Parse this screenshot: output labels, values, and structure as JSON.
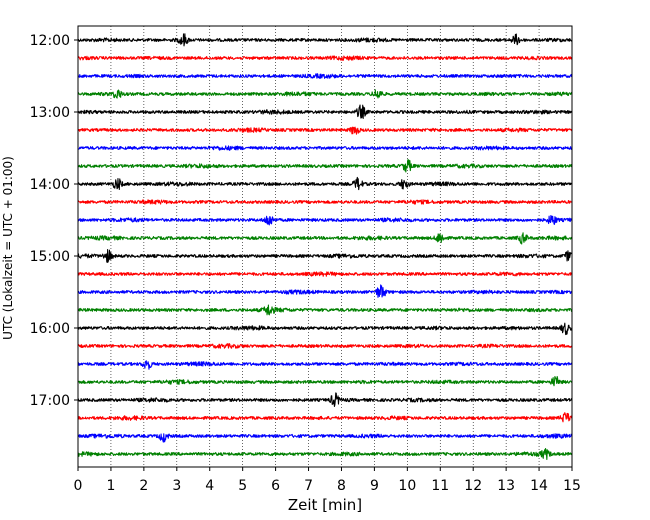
{
  "chart_data": {
    "type": "line",
    "title": "",
    "xlabel": "Zeit  [min]",
    "ylabel": "UTC (Lokalzeit = UTC + 01:00)",
    "xlim": [
      0,
      15
    ],
    "x_ticks": [
      "0",
      "1",
      "2",
      "3",
      "4",
      "5",
      "6",
      "7",
      "8",
      "9",
      "10",
      "11",
      "12",
      "13",
      "14",
      "15"
    ],
    "y_ticks": [
      "12:00",
      "13:00",
      "14:00",
      "15:00",
      "16:00",
      "17:00"
    ],
    "grid": "vertical dotted lines at each minute",
    "trace_interval_minutes": 15,
    "trace_count": 24,
    "trace_colors": [
      "#000000",
      "#ff0000",
      "#0000ff",
      "#008000"
    ],
    "trace_start_times": [
      "12:00",
      "12:15",
      "12:30",
      "12:45",
      "13:00",
      "13:15",
      "13:30",
      "13:45",
      "14:00",
      "14:15",
      "14:30",
      "14:45",
      "15:00",
      "15:15",
      "15:30",
      "15:45",
      "16:00",
      "16:15",
      "16:30",
      "16:45",
      "17:00",
      "17:15",
      "17:30",
      "17:45"
    ],
    "events": [
      {
        "trace": 0,
        "x_min": 3.2,
        "strength": 1.6
      },
      {
        "trace": 0,
        "x_min": 13.3,
        "strength": 1.3
      },
      {
        "trace": 3,
        "x_min": 1.2,
        "strength": 1.2
      },
      {
        "trace": 3,
        "x_min": 9.1,
        "strength": 1.4
      },
      {
        "trace": 4,
        "x_min": 8.6,
        "strength": 1.9
      },
      {
        "trace": 5,
        "x_min": 8.4,
        "strength": 1.2
      },
      {
        "trace": 7,
        "x_min": 10.0,
        "strength": 1.7
      },
      {
        "trace": 8,
        "x_min": 1.2,
        "strength": 1.5
      },
      {
        "trace": 8,
        "x_min": 8.5,
        "strength": 1.6
      },
      {
        "trace": 8,
        "x_min": 9.9,
        "strength": 1.3
      },
      {
        "trace": 10,
        "x_min": 5.8,
        "strength": 1.6
      },
      {
        "trace": 10,
        "x_min": 14.4,
        "strength": 1.4
      },
      {
        "trace": 11,
        "x_min": 11.0,
        "strength": 1.5
      },
      {
        "trace": 11,
        "x_min": 13.5,
        "strength": 1.4
      },
      {
        "trace": 12,
        "x_min": 0.9,
        "strength": 1.6
      },
      {
        "trace": 12,
        "x_min": 14.9,
        "strength": 1.3
      },
      {
        "trace": 14,
        "x_min": 9.2,
        "strength": 2.2
      },
      {
        "trace": 15,
        "x_min": 5.8,
        "strength": 1.3
      },
      {
        "trace": 16,
        "x_min": 14.8,
        "strength": 1.6
      },
      {
        "trace": 18,
        "x_min": 2.1,
        "strength": 1.4
      },
      {
        "trace": 19,
        "x_min": 14.5,
        "strength": 1.4
      },
      {
        "trace": 20,
        "x_min": 7.8,
        "strength": 1.8
      },
      {
        "trace": 21,
        "x_min": 14.8,
        "strength": 1.3
      },
      {
        "trace": 22,
        "x_min": 2.6,
        "strength": 1.4
      },
      {
        "trace": 23,
        "x_min": 14.2,
        "strength": 1.2
      }
    ]
  }
}
